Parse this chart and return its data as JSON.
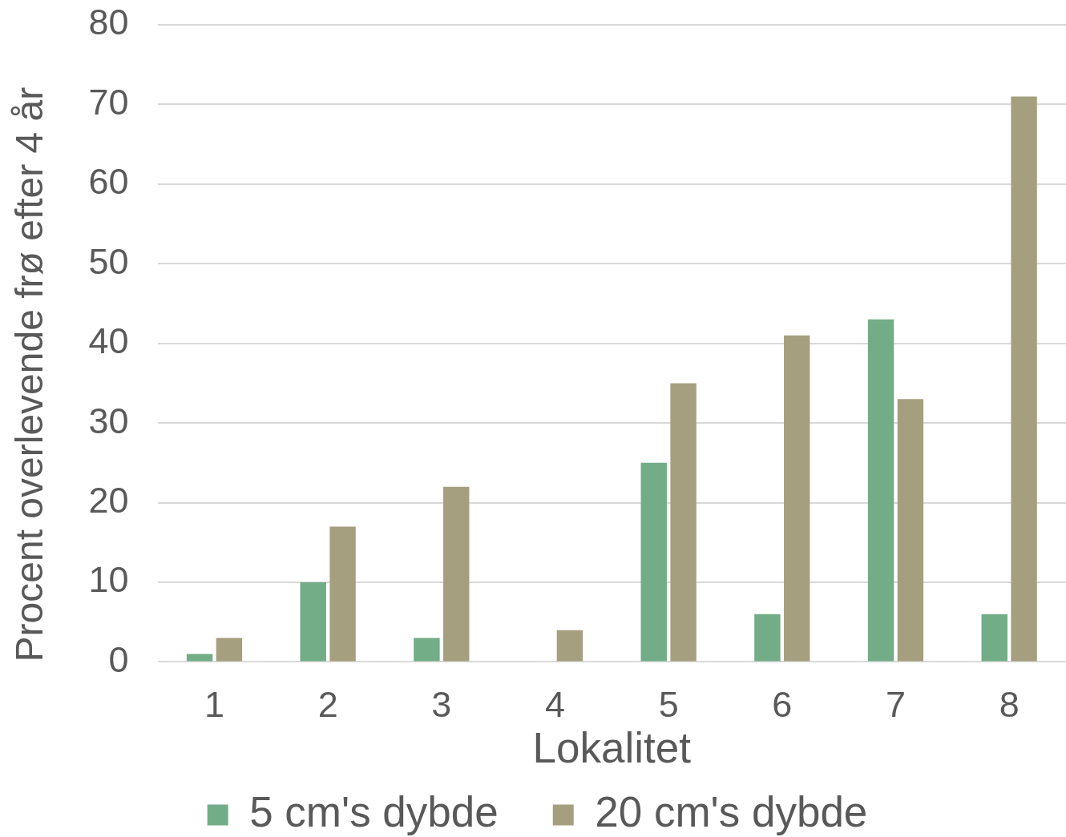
{
  "chart_data": {
    "type": "bar",
    "xlabel": "Lokalitet",
    "ylabel": "Procent overlevende frø efter 4 år",
    "categories": [
      "1",
      "2",
      "3",
      "4",
      "5",
      "6",
      "7",
      "8"
    ],
    "series": [
      {
        "name": "5 cm's dybde",
        "color": "#72ad88",
        "values": [
          1,
          10,
          3,
          0,
          25,
          6,
          43,
          6
        ]
      },
      {
        "name": "20 cm's dybde",
        "color": "#a69f7f",
        "values": [
          3,
          17,
          22,
          4,
          35,
          41,
          33,
          71
        ]
      }
    ],
    "ylim": [
      0,
      80
    ],
    "yticks": [
      0,
      10,
      20,
      30,
      40,
      50,
      60,
      70,
      80
    ],
    "grid": "y",
    "legend": "bottom"
  }
}
